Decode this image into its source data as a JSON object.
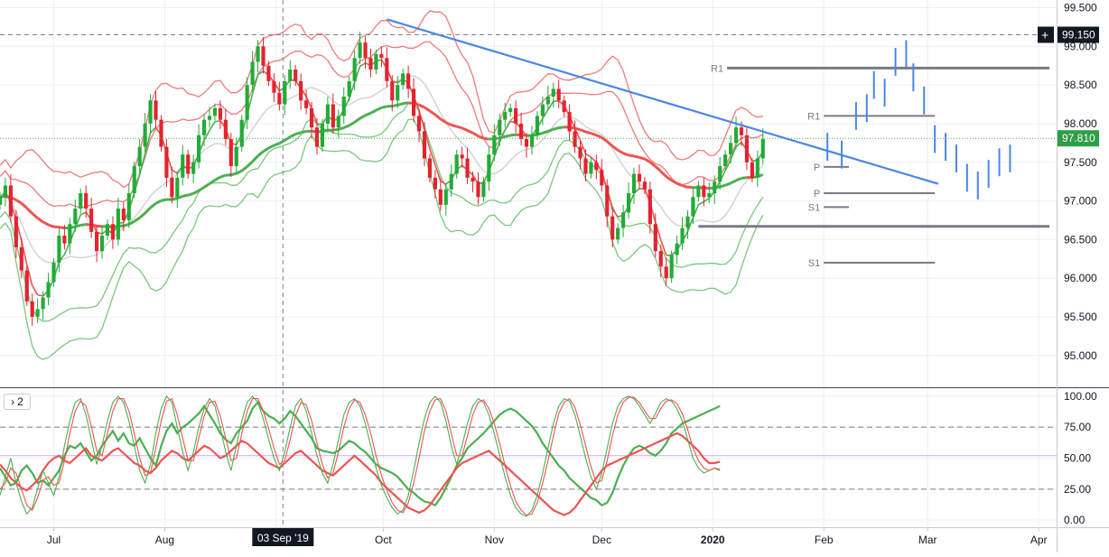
{
  "colors": {
    "up": "#26a69a",
    "candle_up": "#22ab37",
    "candle_down": "#e3232f",
    "band_upper": "#f07a7a",
    "band_lower": "#7bc77e",
    "sma_gray": "#d4d4d4",
    "ema_red": "#ef5350",
    "ema_green": "#4caf50",
    "trendline": "#4a86e8",
    "pivot": "#787b86",
    "axis_text": "#131722",
    "grid": "#eef0f3",
    "crosshair": "#758696",
    "current_price_bg": "#2e9e47",
    "crosshair_price_bg": "#131722"
  },
  "price_scale_badges": {
    "crosshair_price": "99.150",
    "last_price": "97.810"
  },
  "time_scale_badge": "03 Sep '19",
  "pane_label": "2",
  "chart_data": [
    {
      "type": "candlestick",
      "title": "",
      "ylim": [
        94.6,
        99.6
      ],
      "y_ticks": [
        "99.500",
        "99.000",
        "98.500",
        "98.000",
        "97.500",
        "97.000",
        "96.500",
        "96.000",
        "95.500",
        "95.000"
      ],
      "y_tick_values": [
        99.5,
        99.0,
        98.5,
        98.0,
        97.5,
        97.0,
        96.5,
        96.0,
        95.5,
        95.0
      ],
      "x_ticks": [
        "Jul",
        "Aug",
        "Sep",
        "Oct",
        "Nov",
        "Dec",
        "2020",
        "Feb",
        "Mar",
        "Apr"
      ],
      "x_tick_days": [
        0,
        31,
        62,
        92,
        123,
        153,
        184,
        215,
        244,
        275
      ],
      "x_day_range": [
        -15,
        280
      ],
      "crosshair": {
        "day": 64,
        "price": 99.15
      },
      "last_price": 97.81,
      "projection": [
        {
          "day": 216,
          "price": 97.7
        },
        {
          "day": 220,
          "price": 97.6
        },
        {
          "day": 224,
          "price": 98.1
        },
        {
          "day": 227,
          "price": 98.2
        },
        {
          "day": 229,
          "price": 98.5
        },
        {
          "day": 232,
          "price": 98.4
        },
        {
          "day": 235,
          "price": 98.8
        },
        {
          "day": 238,
          "price": 98.9
        },
        {
          "day": 240,
          "price": 98.6
        },
        {
          "day": 243,
          "price": 98.3
        },
        {
          "day": 246,
          "price": 97.8
        },
        {
          "day": 249,
          "price": 97.7
        },
        {
          "day": 252,
          "price": 97.55
        },
        {
          "day": 255,
          "price": 97.3
        },
        {
          "day": 258,
          "price": 97.2
        },
        {
          "day": 261,
          "price": 97.35
        },
        {
          "day": 264,
          "price": 97.5
        },
        {
          "day": 267,
          "price": 97.55
        }
      ],
      "trendline": [
        {
          "day": 93,
          "price": 99.35
        },
        {
          "day": 247,
          "price": 97.22
        }
      ],
      "pivots": [
        {
          "label": "R1",
          "price": 98.72,
          "day_start": 188,
          "day_end": 278
        },
        {
          "label": "R1",
          "price": 98.1,
          "day_start": 215,
          "day_end": 246
        },
        {
          "label": "P",
          "price": 97.44,
          "day_start": 215,
          "day_end": 222
        },
        {
          "label": "P",
          "price": 97.1,
          "day_start": 215,
          "day_end": 246
        },
        {
          "label": "S1",
          "price": 96.92,
          "day_start": 215,
          "day_end": 222
        },
        {
          "label": "",
          "price": 96.67,
          "day_start": 180,
          "day_end": 278
        },
        {
          "label": "S1",
          "price": 96.2,
          "day_start": 215,
          "day_end": 246
        }
      ],
      "series": [
        {
          "name": "",
          "kind": "ohlc",
          "start_day": -15,
          "step_days": 1.5,
          "close": [
            97.05,
            97.2,
            96.8,
            96.4,
            96.1,
            95.7,
            95.5,
            95.6,
            95.75,
            95.95,
            96.2,
            96.55,
            96.45,
            96.7,
            96.9,
            97.1,
            96.9,
            96.6,
            96.35,
            96.55,
            96.7,
            96.5,
            96.9,
            96.75,
            97.1,
            97.45,
            97.7,
            98.0,
            98.3,
            98.05,
            97.7,
            97.3,
            97.05,
            97.3,
            97.6,
            97.35,
            97.5,
            97.85,
            98.05,
            98.1,
            98.2,
            98.05,
            97.8,
            97.45,
            97.7,
            98.05,
            98.5,
            98.8,
            99.0,
            98.75,
            98.55,
            98.4,
            98.25,
            98.55,
            98.7,
            98.55,
            98.3,
            98.2,
            97.95,
            97.7,
            98.0,
            98.25,
            97.95,
            98.1,
            98.35,
            98.55,
            98.85,
            99.05,
            98.85,
            98.7,
            98.9,
            98.85,
            98.55,
            98.3,
            98.5,
            98.65,
            98.45,
            98.1,
            97.9,
            97.55,
            97.3,
            97.15,
            96.95,
            97.15,
            97.35,
            97.6,
            97.55,
            97.3,
            97.25,
            97.05,
            97.25,
            97.6,
            97.85,
            98.05,
            98.15,
            98.2,
            98.0,
            97.8,
            97.7,
            97.85,
            98.1,
            98.25,
            98.35,
            98.45,
            98.3,
            98.15,
            97.9,
            97.7,
            97.55,
            97.35,
            97.5,
            97.4,
            97.2,
            96.8,
            96.5,
            96.65,
            96.85,
            97.1,
            97.35,
            97.25,
            97.15,
            96.7,
            96.35,
            96.15,
            96.0,
            96.3,
            96.45,
            96.65,
            96.8,
            97.05,
            97.2,
            97.05,
            97.1,
            97.25,
            97.45,
            97.6,
            97.75,
            97.95,
            97.85,
            97.5,
            97.3,
            97.55,
            97.8
          ]
        }
      ]
    },
    {
      "type": "line",
      "title": "",
      "ylim": [
        -5,
        105
      ],
      "y_ticks": [
        "100.00",
        "75.00",
        "50.00",
        "25.00",
        "0.00"
      ],
      "y_tick_values": [
        100,
        75,
        50,
        25,
        0
      ],
      "levels": [
        75,
        52,
        25
      ],
      "series": [
        {
          "name": "",
          "color": "#4caf50",
          "width": 2.2,
          "start_day": -15,
          "step_days": 1.5,
          "values": [
            42,
            35,
            28,
            30,
            40,
            44,
            38,
            30,
            32,
            28,
            34,
            40,
            52,
            60,
            58,
            62,
            55,
            48,
            52,
            60,
            66,
            72,
            64,
            70,
            62,
            60,
            66,
            58,
            50,
            44,
            60,
            72,
            78,
            70,
            75,
            78,
            82,
            86,
            92,
            85,
            78,
            70,
            65,
            62,
            70,
            75,
            80,
            90,
            95,
            88,
            84,
            82,
            78,
            82,
            88,
            84,
            78,
            72,
            66,
            58,
            56,
            55,
            54,
            56,
            60,
            64,
            62,
            58,
            55,
            50,
            45,
            42,
            40,
            38,
            35,
            30,
            25,
            22,
            18,
            15,
            14,
            12,
            18,
            26,
            35,
            44,
            50,
            58,
            62,
            66,
            70,
            75,
            80,
            85,
            88,
            90,
            88,
            84,
            80,
            76,
            70,
            62,
            56,
            50,
            44,
            40,
            34,
            30,
            26,
            22,
            18,
            16,
            12,
            14,
            22,
            34,
            44,
            52,
            58,
            60,
            58,
            54,
            52,
            56,
            62,
            70,
            74,
            78,
            80,
            82,
            84,
            86,
            88,
            90,
            92
          ]
        },
        {
          "name": "",
          "color": "#ef5350",
          "width": 2.2,
          "start_day": -15,
          "step_days": 1.5,
          "values": [
            45,
            40,
            34,
            30,
            26,
            24,
            28,
            32,
            40,
            46,
            50,
            52,
            48,
            46,
            50,
            54,
            58,
            52,
            50,
            48,
            52,
            56,
            58,
            54,
            50,
            46,
            44,
            40,
            38,
            42,
            48,
            52,
            56,
            54,
            50,
            48,
            52,
            56,
            60,
            58,
            54,
            50,
            52,
            56,
            60,
            64,
            62,
            58,
            54,
            50,
            46,
            44,
            42,
            46,
            50,
            54,
            56,
            52,
            48,
            44,
            40,
            38,
            36,
            40,
            44,
            48,
            52,
            48,
            44,
            40,
            36,
            30,
            26,
            22,
            18,
            14,
            10,
            8,
            6,
            8,
            12,
            18,
            24,
            30,
            36,
            42,
            46,
            48,
            50,
            52,
            54,
            56,
            52,
            48,
            44,
            40,
            36,
            32,
            28,
            24,
            20,
            16,
            12,
            8,
            6,
            4,
            6,
            10,
            16,
            22,
            28,
            34,
            40,
            44,
            46,
            48,
            50,
            52,
            54,
            56,
            58,
            60,
            62,
            64,
            66,
            68,
            70,
            68,
            64,
            60,
            56,
            50,
            46,
            46,
            47
          ]
        },
        {
          "name": "",
          "color": "#4caf50",
          "width": 1.1,
          "start_day": -15,
          "step_days": 1.5,
          "values": [
            20,
            35,
            50,
            30,
            15,
            5,
            10,
            25,
            40,
            30,
            20,
            35,
            60,
            80,
            95,
            98,
            85,
            65,
            45,
            60,
            80,
            95,
            100,
            95,
            80,
            60,
            40,
            30,
            45,
            70,
            90,
            100,
            95,
            75,
            55,
            40,
            55,
            75,
            90,
            98,
            92,
            75,
            55,
            40,
            60,
            80,
            95,
            100,
            95,
            82,
            65,
            50,
            40,
            55,
            75,
            92,
            98,
            88,
            70,
            52,
            38,
            30,
            45,
            65,
            85,
            95,
            98,
            92,
            78,
            60,
            42,
            28,
            18,
            10,
            5,
            8,
            20,
            40,
            62,
            82,
            95,
            100,
            95,
            80,
            60,
            45,
            60,
            78,
            92,
            98,
            95,
            85,
            70,
            52,
            35,
            20,
            10,
            5,
            3,
            8,
            20,
            38,
            58,
            78,
            92,
            98,
            96,
            85,
            68,
            50,
            35,
            25,
            38,
            58,
            78,
            92,
            98,
            100,
            98,
            92,
            85,
            78,
            86,
            95,
            98,
            96,
            90,
            80,
            65,
            50,
            42,
            38,
            40,
            42,
            40
          ]
        },
        {
          "name": "",
          "color": "#ef5350",
          "width": 1.1,
          "start_day": -15,
          "step_days": 1.5,
          "values": [
            25,
            30,
            42,
            38,
            25,
            12,
            8,
            18,
            32,
            35,
            28,
            30,
            48,
            70,
            88,
            96,
            92,
            76,
            56,
            52,
            70,
            88,
            98,
            98,
            88,
            70,
            50,
            36,
            38,
            58,
            80,
            96,
            98,
            85,
            66,
            48,
            48,
            66,
            84,
            95,
            96,
            84,
            66,
            48,
            50,
            70,
            88,
            98,
            98,
            88,
            74,
            58,
            45,
            48,
            65,
            84,
            95,
            93,
            80,
            62,
            45,
            34,
            38,
            55,
            75,
            90,
            97,
            95,
            85,
            70,
            52,
            36,
            24,
            14,
            8,
            6,
            14,
            30,
            50,
            72,
            88,
            97,
            98,
            88,
            70,
            52,
            52,
            68,
            85,
            95,
            97,
            90,
            78,
            62,
            44,
            28,
            15,
            8,
            4,
            5,
            14,
            30,
            48,
            68,
            86,
            95,
            98,
            91,
            77,
            60,
            43,
            30,
            32,
            48,
            68,
            85,
            95,
            99,
            99,
            95,
            88,
            82,
            82,
            90,
            96,
            97,
            94,
            86,
            73,
            58,
            48,
            42,
            40,
            42,
            41
          ]
        }
      ]
    }
  ]
}
